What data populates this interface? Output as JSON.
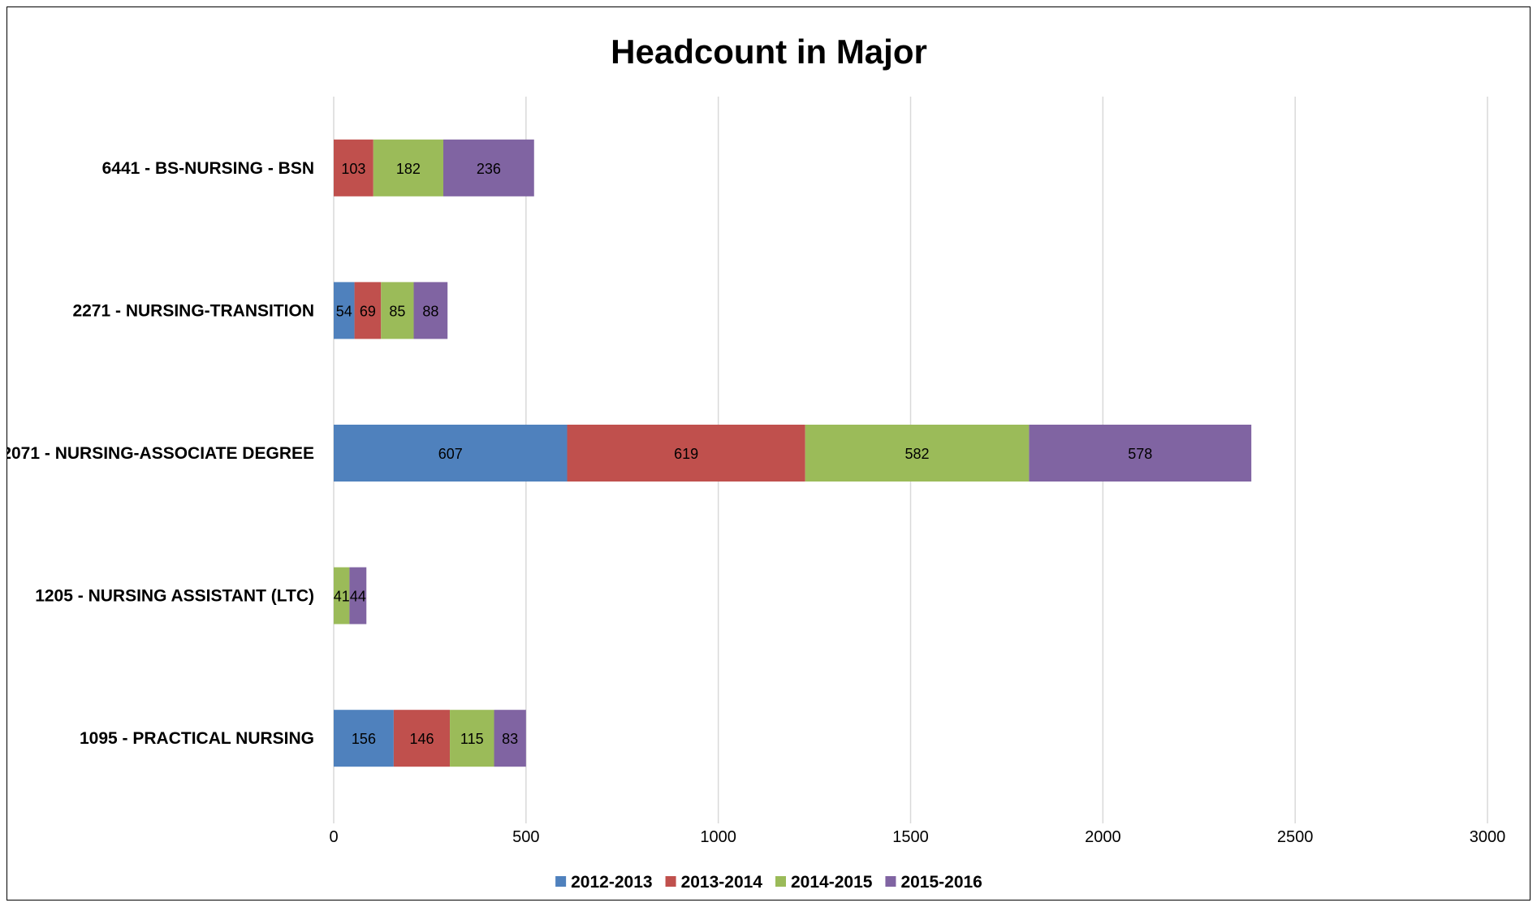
{
  "chart_data": {
    "type": "bar",
    "orientation": "horizontal",
    "stacked": true,
    "title": "Headcount in Major",
    "xlabel": "",
    "ylabel": "",
    "categories": [
      "6441 - BS-NURSING - BSN",
      "2271 - NURSING-TRANSITION",
      "2071 - NURSING-ASSOCIATE DEGREE",
      "1205 - NURSING ASSISTANT (LTC)",
      "1095 - PRACTICAL NURSING"
    ],
    "series": [
      {
        "name": "2012-2013",
        "color": "#4f81bd",
        "values": [
          null,
          54,
          607,
          null,
          156
        ]
      },
      {
        "name": "2013-2014",
        "color": "#c0504d",
        "values": [
          103,
          69,
          619,
          null,
          146
        ]
      },
      {
        "name": "2014-2015",
        "color": "#9bbb59",
        "values": [
          182,
          85,
          582,
          41,
          115
        ]
      },
      {
        "name": "2015-2016",
        "color": "#8064a2",
        "values": [
          236,
          88,
          578,
          44,
          83
        ]
      }
    ],
    "xlim": [
      0,
      3000
    ],
    "xticks": [
      0,
      500,
      1000,
      1500,
      2000,
      2500,
      3000
    ],
    "grid": true,
    "legend_position": "bottom",
    "data_labels": true
  }
}
